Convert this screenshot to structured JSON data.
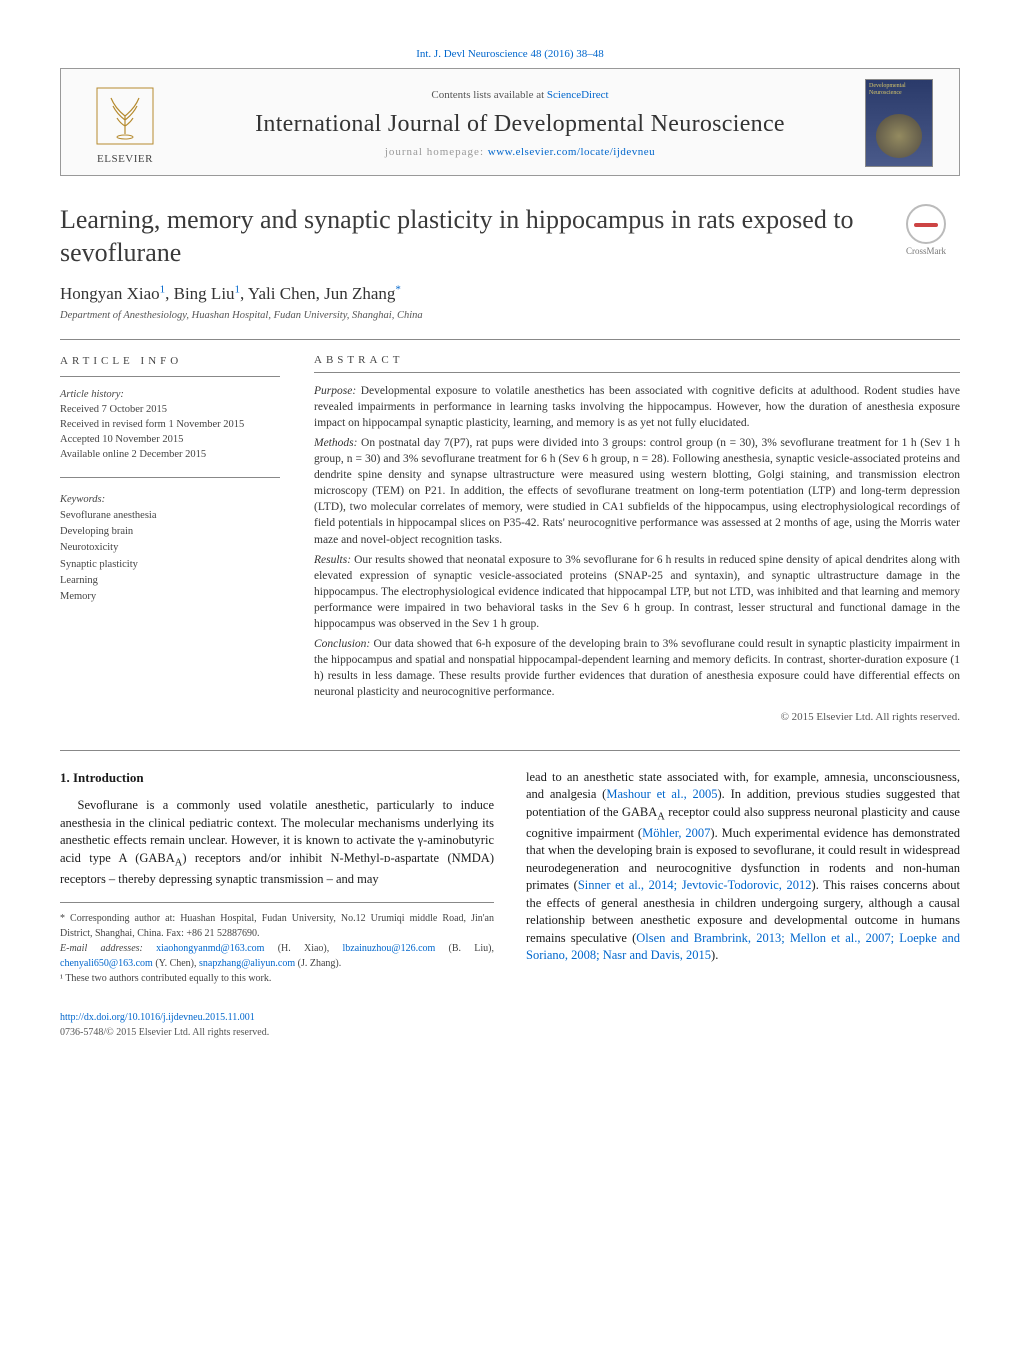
{
  "journal_link_top": "Int. J. Devl Neuroscience 48 (2016) 38–48",
  "header": {
    "contents_prefix": "Contents lists available at ",
    "contents_link": "ScienceDirect",
    "journal_name": "International Journal of Developmental Neuroscience",
    "homepage_prefix": "journal homepage: ",
    "homepage_url": "www.elsevier.com/locate/ijdevneu",
    "publisher": "ELSEVIER"
  },
  "crossmark_label": "CrossMark",
  "title": "Learning, memory and synaptic plasticity in hippocampus in rats exposed to sevoflurane",
  "authors_html": "Hongyan Xiao¹, Bing Liu¹, Yali Chen, Jun Zhang*",
  "affiliation": "Department of Anesthesiology, Huashan Hospital, Fudan University, Shanghai, China",
  "article_info": {
    "heading": "ARTICLE INFO",
    "history_label": "Article history:",
    "history": [
      "Received 7 October 2015",
      "Received in revised form 1 November 2015",
      "Accepted 10 November 2015",
      "Available online 2 December 2015"
    ],
    "keywords_label": "Keywords:",
    "keywords": [
      "Sevoflurane anesthesia",
      "Developing brain",
      "Neurotoxicity",
      "Synaptic plasticity",
      "Learning",
      "Memory"
    ]
  },
  "abstract": {
    "heading": "ABSTRACT",
    "purpose_label": "Purpose:",
    "purpose": "Developmental exposure to volatile anesthetics has been associated with cognitive deficits at adulthood. Rodent studies have revealed impairments in performance in learning tasks involving the hippocampus. However, how the duration of anesthesia exposure impact on hippocampal synaptic plasticity, learning, and memory is as yet not fully elucidated.",
    "methods_label": "Methods:",
    "methods": "On postnatal day 7(P7), rat pups were divided into 3 groups: control group (n = 30), 3% sevoflurane treatment for 1 h (Sev 1 h group, n = 30) and 3% sevoflurane treatment for 6 h (Sev 6 h group, n = 28). Following anesthesia, synaptic vesicle-associated proteins and dendrite spine density and synapse ultrastructure were measured using western blotting, Golgi staining, and transmission electron microscopy (TEM) on P21. In addition, the effects of sevoflurane treatment on long-term potentiation (LTP) and long-term depression (LTD), two molecular correlates of memory, were studied in CA1 subfields of the hippocampus, using electrophysiological recordings of field potentials in hippocampal slices on P35-42. Rats' neurocognitive performance was assessed at 2 months of age, using the Morris water maze and novel-object recognition tasks.",
    "results_label": "Results:",
    "results": "Our results showed that neonatal exposure to 3% sevoflurane for 6 h results in reduced spine density of apical dendrites along with elevated expression of synaptic vesicle-associated proteins (SNAP-25 and syntaxin), and synaptic ultrastructure damage in the hippocampus. The electrophysiological evidence indicated that hippocampal LTP, but not LTD, was inhibited and that learning and memory performance were impaired in two behavioral tasks in the Sev 6 h group. In contrast, lesser structural and functional damage in the hippocampus was observed in the Sev 1 h group.",
    "conclusion_label": "Conclusion:",
    "conclusion": "Our data showed that 6-h exposure of the developing brain to 3% sevoflurane could result in synaptic plasticity impairment in the hippocampus and spatial and nonspatial hippocampal-dependent learning and memory deficits. In contrast, shorter-duration exposure (1 h) results in less damage. These results provide further evidences that duration of anesthesia exposure could have differential effects on neuronal plasticity and neurocognitive performance.",
    "copyright": "© 2015 Elsevier Ltd. All rights reserved."
  },
  "intro": {
    "heading": "1. Introduction",
    "p1a": "Sevoflurane is a commonly used volatile anesthetic, particularly to induce anesthesia in the clinical pediatric context. The molecular mechanisms underlying its anesthetic effects remain unclear. However, it is known to activate the γ-aminobutyric acid type A (GABA",
    "p1b": ") receptors and/or inhibit N-Methyl-ᴅ-aspartate (NMDA) receptors – thereby depressing synaptic transmission – and may",
    "p2a": "lead to an anesthetic state associated with, for example, amnesia, unconsciousness, and analgesia (",
    "cite1": "Mashour et al., 2005",
    "p2b": "). In addition, previous studies suggested that potentiation of the GABA",
    "p2c": " receptor could also suppress neuronal plasticity and cause cognitive impairment (",
    "cite2": "Möhler, 2007",
    "p2d": "). Much experimental evidence has demonstrated that when the developing brain is exposed to sevoflurane, it could result in widespread neurodegeneration and neurocognitive dysfunction in rodents and non-human primates (",
    "cite3": "Sinner et al., 2014; Jevtovic-Todorovic, 2012",
    "p2e": "). This raises concerns about the effects of general anesthesia in children undergoing surgery, although a causal relationship between anesthetic exposure and developmental outcome in humans remains speculative (",
    "cite4": "Olsen and Brambrink, 2013; Mellon et al., 2007; Loepke and Soriano, 2008; Nasr and Davis, 2015",
    "p2f": ")."
  },
  "footnotes": {
    "corr": "* Corresponding author at: Huashan Hospital, Fudan University, No.12 Urumiqi middle Road, Jin'an District, Shanghai, China. Fax: +86 21 52887690.",
    "emails_label": "E-mail addresses: ",
    "email1": "xiaohongyanmd@163.com",
    "name1": " (H. Xiao), ",
    "email2": "lbzainuzhou@126.com",
    "name2": " (B. Liu), ",
    "email3": "chenyali650@163.com",
    "name3": " (Y. Chen), ",
    "email4": "snapzhang@aliyun.com",
    "name4": " (J. Zhang).",
    "note1": "¹ These two authors contributed equally to this work."
  },
  "footer": {
    "doi": "http://dx.doi.org/10.1016/j.ijdevneu.2015.11.001",
    "issn_line": "0736-5748/© 2015 Elsevier Ltd. All rights reserved."
  },
  "colors": {
    "link": "#0066cc",
    "text": "#1a1a1a",
    "rule": "#888888"
  }
}
